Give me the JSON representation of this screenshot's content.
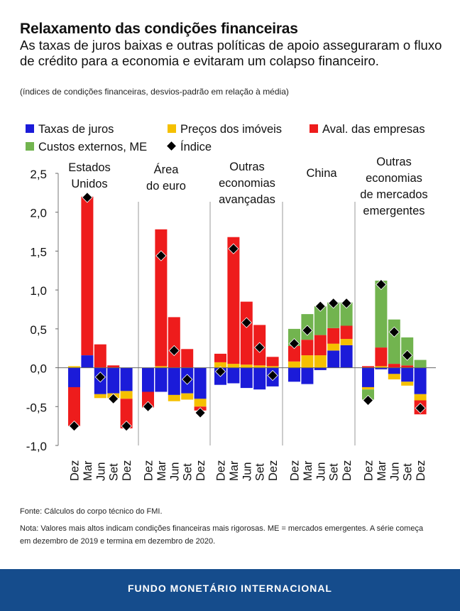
{
  "title": "Relaxamento das condições financeiras",
  "subtitle": "As taxas de juros baixas e outras políticas de apoio asseguraram o fluxo de crédito para a economia e evitaram um colapso financeiro.",
  "units": "(índices de condições financeiras, desvios-padrão em relação à média)",
  "source": "Fonte: Cálculos do corpo técnico do FMI.",
  "note": "Nota: Valores mais altos indicam condições financeiras mais rigorosas. ME = mercados emergentes. A série começa em dezembro de 2019 e termina em dezembro de 2020.",
  "footer": "FUNDO MONETÁRIO INTERNACIONAL",
  "colors": {
    "taxas": "#1b1bd9",
    "precos": "#f5c000",
    "aval": "#ee1c1c",
    "custos": "#72b44f",
    "indice": "#000000",
    "footer": "#154c8c"
  },
  "chart_data": {
    "type": "bar",
    "stacked": true,
    "ylim": [
      -1.0,
      2.5
    ],
    "yticks": [
      "2,5",
      "2,0",
      "1,5",
      "1,0",
      "0,5",
      "0,0",
      "-0,5",
      "-1,0"
    ],
    "ytick_values": [
      2.5,
      2.0,
      1.5,
      1.0,
      0.5,
      0.0,
      -0.5,
      -1.0
    ],
    "legend": [
      {
        "key": "taxas",
        "label": "Taxas de juros",
        "kind": "bar"
      },
      {
        "key": "precos",
        "label": "Preços dos imóveis",
        "kind": "bar"
      },
      {
        "key": "aval",
        "label": "Aval. das empresas",
        "kind": "bar"
      },
      {
        "key": "custos",
        "label": "Custos externos, ME",
        "kind": "bar"
      },
      {
        "key": "indice",
        "label": "Índice",
        "kind": "marker"
      }
    ],
    "series_keys": [
      "taxas",
      "precos",
      "aval",
      "custos"
    ],
    "groups": [
      {
        "name_lines": [
          "Estados",
          "Unidos"
        ],
        "categories": [
          "Dez",
          "Mar",
          "Jun",
          "Set",
          "Dez"
        ],
        "bars": [
          {
            "taxas": -0.25,
            "precos": 0.02,
            "aval": -0.5,
            "custos": 0,
            "indice": -0.75
          },
          {
            "taxas": 0.16,
            "precos": 0,
            "aval": 2.04,
            "custos": 0,
            "indice": 2.19
          },
          {
            "taxas": -0.34,
            "precos": -0.05,
            "aval": 0.3,
            "custos": 0,
            "indice": -0.12
          },
          {
            "taxas": -0.33,
            "precos": -0.06,
            "aval": 0.03,
            "custos": 0,
            "indice": -0.4
          },
          {
            "taxas": -0.3,
            "precos": -0.1,
            "aval": -0.38,
            "custos": 0,
            "indice": -0.75
          }
        ]
      },
      {
        "name_lines": [
          "Área",
          "do euro"
        ],
        "categories": [
          "Dez",
          "Mar",
          "Jun",
          "Set",
          "Dez"
        ],
        "bars": [
          {
            "taxas": -0.31,
            "precos": 0,
            "aval": -0.2,
            "custos": 0,
            "indice": -0.5
          },
          {
            "taxas": -0.31,
            "precos": 0.02,
            "aval": 1.76,
            "custos": 0,
            "indice": 1.44
          },
          {
            "taxas": -0.35,
            "precos": -0.08,
            "aval": 0.65,
            "custos": 0,
            "indice": 0.22
          },
          {
            "taxas": -0.33,
            "precos": -0.08,
            "aval": 0.24,
            "custos": 0,
            "indice": -0.15
          },
          {
            "taxas": -0.4,
            "precos": -0.1,
            "aval": -0.05,
            "custos": 0,
            "indice": -0.58
          }
        ]
      },
      {
        "name_lines": [
          "Outras",
          "economias",
          "avançadas"
        ],
        "categories": [
          "Dez",
          "Mar",
          "Jun",
          "Set",
          "Dez"
        ],
        "bars": [
          {
            "taxas": -0.22,
            "precos": 0.07,
            "aval": 0.11,
            "custos": 0,
            "indice": -0.05
          },
          {
            "taxas": -0.2,
            "precos": 0.05,
            "aval": 1.63,
            "custos": 0,
            "indice": 1.53
          },
          {
            "taxas": -0.26,
            "precos": 0.04,
            "aval": 0.81,
            "custos": 0,
            "indice": 0.58
          },
          {
            "taxas": -0.28,
            "precos": 0.03,
            "aval": 0.52,
            "custos": 0,
            "indice": 0.26
          },
          {
            "taxas": -0.24,
            "precos": 0.02,
            "aval": 0.12,
            "custos": 0,
            "indice": -0.1
          }
        ]
      },
      {
        "name_lines": [
          "China"
        ],
        "categories": [
          "Dez",
          "Mar",
          "Jun",
          "Set",
          "Dez"
        ],
        "bars": [
          {
            "taxas": -0.18,
            "precos": 0.08,
            "aval": 0.2,
            "custos": 0.22,
            "indice": 0.31
          },
          {
            "taxas": -0.21,
            "precos": 0.16,
            "aval": 0.2,
            "custos": 0.33,
            "indice": 0.48
          },
          {
            "taxas": -0.03,
            "precos": 0.16,
            "aval": 0.26,
            "custos": 0.37,
            "indice": 0.79
          },
          {
            "taxas": 0.22,
            "precos": 0.09,
            "aval": 0.2,
            "custos": 0.33,
            "indice": 0.83
          },
          {
            "taxas": 0.29,
            "precos": 0.08,
            "aval": 0.17,
            "custos": 0.3,
            "indice": 0.83
          }
        ]
      },
      {
        "name_lines": [
          "Outras",
          "economias",
          "de mercados",
          "emergentes"
        ],
        "categories": [
          "Dez",
          "Mar",
          "Jun",
          "Set",
          "Dez"
        ],
        "bars": [
          {
            "taxas": -0.25,
            "precos": -0.03,
            "aval": 0.02,
            "custos": -0.13,
            "indice": -0.42
          },
          {
            "taxas": -0.02,
            "precos": 0.02,
            "aval": 0.24,
            "custos": 0.86,
            "indice": 1.07
          },
          {
            "taxas": -0.08,
            "precos": -0.07,
            "aval": 0.05,
            "custos": 0.57,
            "indice": 0.46
          },
          {
            "taxas": -0.18,
            "precos": -0.05,
            "aval": 0.03,
            "custos": 0.36,
            "indice": 0.16
          },
          {
            "taxas": -0.34,
            "precos": -0.08,
            "aval": -0.18,
            "custos": 0.1,
            "indice": -0.52
          }
        ]
      }
    ]
  }
}
